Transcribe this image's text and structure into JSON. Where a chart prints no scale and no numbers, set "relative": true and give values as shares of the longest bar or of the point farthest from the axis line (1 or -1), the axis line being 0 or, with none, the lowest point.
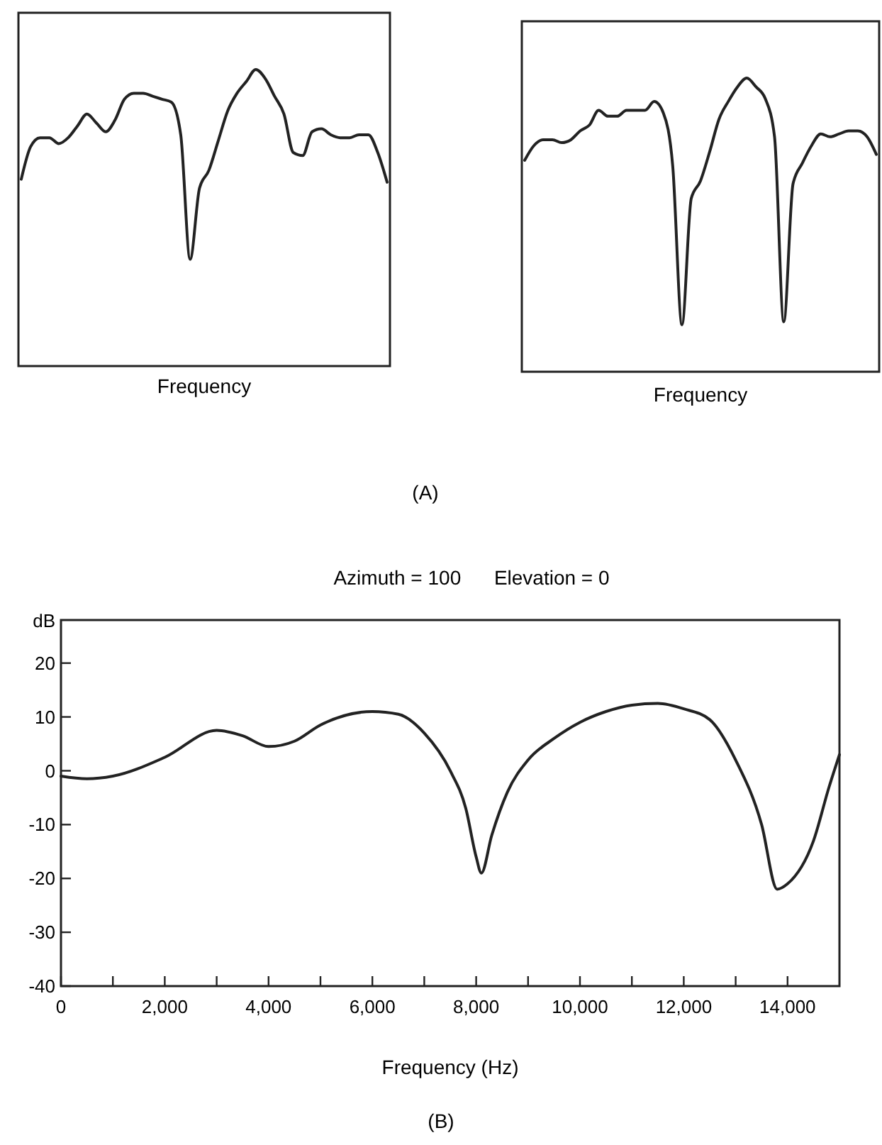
{
  "chart_data": [
    {
      "type": "line",
      "relative": true,
      "xlabel": "Frequency",
      "annotations": [
        "(A)"
      ],
      "categories": [
        null,
        null,
        null,
        null,
        null,
        null,
        null,
        null,
        null,
        null,
        null,
        null,
        null,
        null,
        null,
        null,
        null,
        null,
        null,
        null,
        null,
        null,
        null,
        null,
        null,
        null,
        null,
        null,
        null,
        null,
        null,
        null,
        null,
        null,
        null,
        null,
        null,
        null,
        null,
        null
      ],
      "series": [
        {
          "color": "#222222",
          "values": [
            0.63,
            0.74,
            0.77,
            0.77,
            0.75,
            0.77,
            0.81,
            0.85,
            0.82,
            0.79,
            0.83,
            0.9,
            0.92,
            0.92,
            0.91,
            0.9,
            0.89,
            0.78,
            0.36,
            0.6,
            0.66,
            0.76,
            0.86,
            0.92,
            0.96,
            1,
            0.97,
            0.91,
            0.85,
            0.72,
            0.71,
            0.79,
            0.8,
            0.78,
            0.77,
            0.77,
            0.78,
            0.78,
            0.72,
            0.62
          ]
        }
      ]
    },
    {
      "type": "line",
      "relative": true,
      "xlabel": "Frequency",
      "categories": [
        null,
        null,
        null,
        null,
        null,
        null,
        null,
        null,
        null,
        null,
        null,
        null,
        null,
        null,
        null,
        null,
        null,
        null,
        null,
        null,
        null,
        null,
        null,
        null,
        null,
        null,
        null,
        null,
        null,
        null,
        null,
        null,
        null,
        null,
        null,
        null,
        null,
        null,
        null
      ],
      "series": [
        {
          "color": "#222222",
          "values": [
            0.72,
            0.77,
            0.79,
            0.79,
            0.78,
            0.79,
            0.82,
            0.84,
            0.89,
            0.87,
            0.87,
            0.89,
            0.89,
            0.89,
            0.92,
            0.88,
            0.7,
            0.16,
            0.59,
            0.65,
            0.75,
            0.86,
            0.92,
            0.97,
            1,
            0.97,
            0.93,
            0.8,
            0.17,
            0.64,
            0.71,
            0.77,
            0.81,
            0.8,
            0.81,
            0.82,
            0.82,
            0.8,
            0.74
          ]
        }
      ]
    },
    {
      "type": "line",
      "title": "Azimuth = 100      Elevation = 0",
      "xlabel": "Frequency (Hz)",
      "ylabel": "dB",
      "annotations": [
        "(B)"
      ],
      "xlim": [
        0,
        15000
      ],
      "ylim": [
        -40,
        28
      ],
      "xticks": [
        0,
        {
          "value": 1000,
          "label": null
        },
        {
          "value": 2000,
          "label": "2,000"
        },
        {
          "value": 3000,
          "label": null
        },
        {
          "value": 4000,
          "label": "4,000"
        },
        {
          "value": 5000,
          "label": null
        },
        {
          "value": 6000,
          "label": "6,000"
        },
        {
          "value": 7000,
          "label": null
        },
        {
          "value": 8000,
          "label": "8,000"
        },
        {
          "value": 9000,
          "label": null
        },
        {
          "value": 10000,
          "label": "10,000"
        },
        {
          "value": 11000,
          "label": null
        },
        {
          "value": 12000,
          "label": "12,000"
        },
        {
          "value": 13000,
          "label": null
        },
        {
          "value": 14000,
          "label": "14,000"
        }
      ],
      "yticks": [
        -40,
        -30,
        -20,
        -10,
        0,
        10,
        20
      ],
      "x": [
        0,
        500,
        1000,
        2000,
        3000,
        3500,
        4000,
        4500,
        5000,
        6000,
        6500,
        7000,
        7500,
        7800,
        8000,
        8100,
        8300,
        8600,
        9000,
        9500,
        10000,
        10500,
        11000,
        11500,
        12000,
        12500,
        13000,
        13500,
        13800,
        14000,
        14500,
        14800,
        15000
      ],
      "series": [
        {
          "color": "#222222",
          "values": [
            -1,
            -1.5,
            -1,
            2.5,
            7.5,
            6.5,
            4.5,
            5.5,
            8.5,
            11,
            10.5,
            7,
            0,
            -7,
            -16,
            -19,
            -12,
            -4,
            2,
            6,
            9,
            11,
            12.2,
            12.5,
            11.5,
            9.5,
            2,
            -10,
            -22,
            -21,
            -13,
            -3,
            3
          ]
        }
      ]
    }
  ]
}
